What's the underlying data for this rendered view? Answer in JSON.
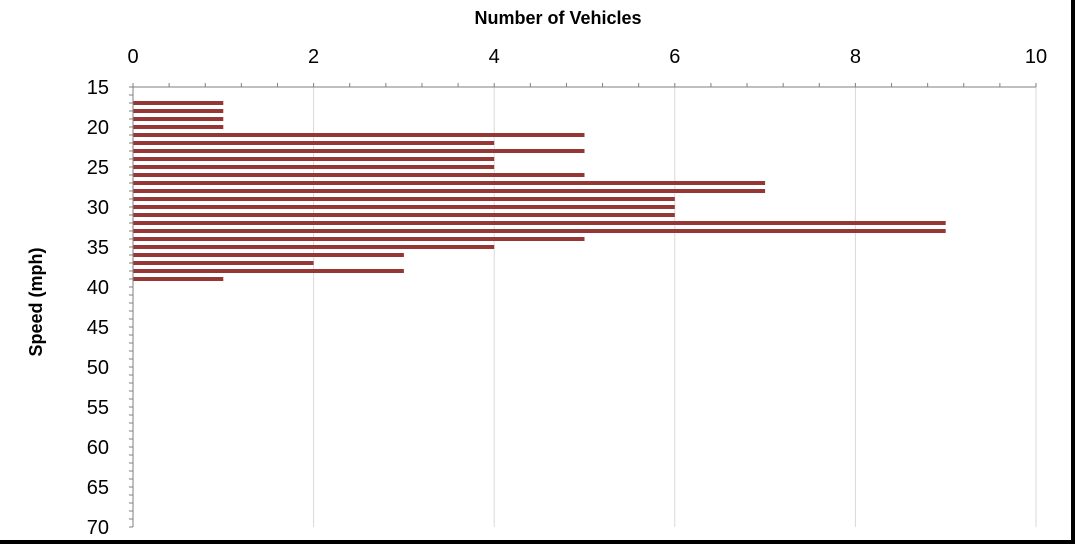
{
  "chart_data": {
    "type": "bar",
    "orientation": "horizontal",
    "title": "",
    "xlabel": "Number of Vehicles",
    "ylabel": "Speed (mph)",
    "x_axis_position": "top",
    "xlim": [
      0,
      10
    ],
    "x_ticks": [
      "0",
      "2",
      "4",
      "6",
      "8",
      "10"
    ],
    "ylim": [
      15,
      70
    ],
    "y_ticks": [
      "15",
      "20",
      "25",
      "30",
      "35",
      "40",
      "45",
      "50",
      "55",
      "60",
      "65",
      "70"
    ],
    "grid": "vertical major gridlines",
    "bar_color": "#953735",
    "categories": [
      17,
      18,
      19,
      20,
      21,
      22,
      23,
      24,
      25,
      26,
      27,
      28,
      29,
      30,
      31,
      32,
      33,
      34,
      35,
      36,
      37,
      38,
      39,
      40
    ],
    "values": [
      1,
      1,
      1,
      1,
      5,
      4,
      5,
      4,
      4,
      5,
      7,
      7,
      6,
      6,
      6,
      9,
      9,
      5,
      4,
      3,
      2,
      3,
      1,
      0
    ]
  }
}
